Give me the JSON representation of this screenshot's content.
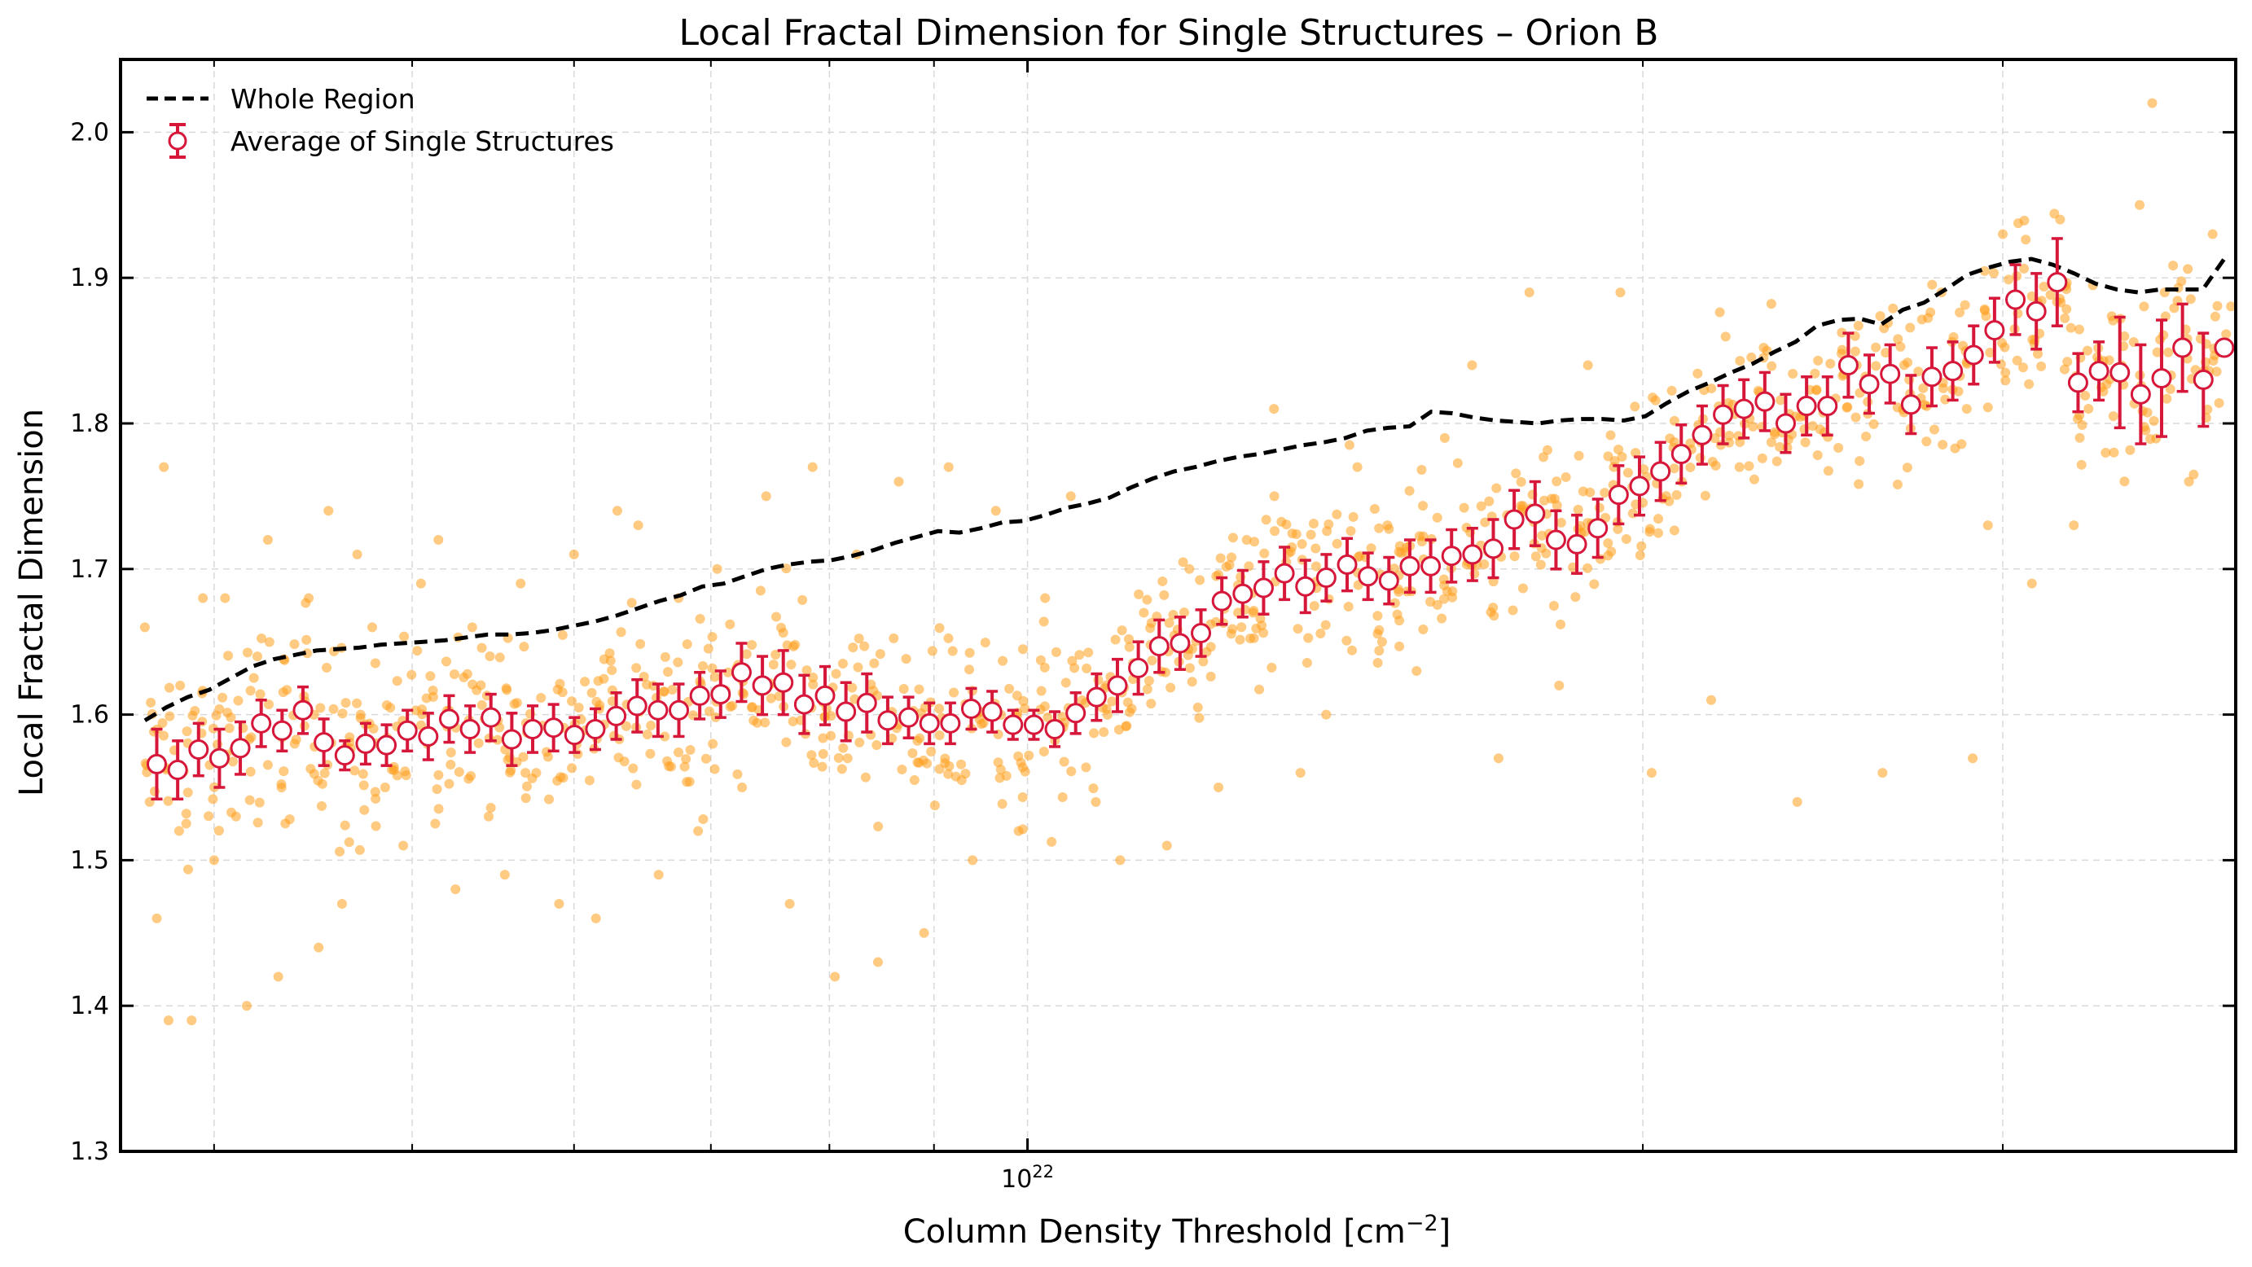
{
  "chart_data": {
    "type": "scatter",
    "title": "Local Fractal Dimension for Single Structures – Orion B",
    "xlabel": "Column Density Threshold [cm",
    "xlabel_sup": "−2",
    "xlabel_close": "]",
    "ylabel": "Local Fractal Dimension",
    "xscale": "log",
    "xlim": [
      3.6e+21,
      3.9e+22
    ],
    "ylim": [
      1.3,
      2.05
    ],
    "x_ticks": [
      {
        "value": 1e+22,
        "base": "10",
        "exp": "22"
      }
    ],
    "y_ticks": [
      "1.3",
      "1.4",
      "1.5",
      "1.6",
      "1.7",
      "1.8",
      "1.9",
      "2.0"
    ],
    "grid": true,
    "legend_position": "top-left",
    "legend": [
      {
        "label": "Whole Region",
        "style": "dashed-line",
        "color": "#000000"
      },
      {
        "label": "Average of Single Structures",
        "style": "errorbar-open-circle",
        "color": "#d6173a"
      }
    ],
    "colors": {
      "scatter": "#ff9f1c",
      "average": "#d6173a",
      "whole_region": "#000000"
    },
    "series": [
      {
        "name": "Whole Region",
        "style": "dashed-line",
        "x_start": 3.7e+21,
        "x_end": 3.85e+22,
        "y": [
          1.596,
          1.605,
          1.612,
          1.617,
          1.625,
          1.633,
          1.638,
          1.641,
          1.644,
          1.645,
          1.646,
          1.648,
          1.649,
          1.65,
          1.651,
          1.653,
          1.655,
          1.655,
          1.656,
          1.658,
          1.661,
          1.664,
          1.668,
          1.673,
          1.678,
          1.682,
          1.688,
          1.69,
          1.695,
          1.7,
          1.703,
          1.705,
          1.706,
          1.709,
          1.713,
          1.718,
          1.722,
          1.726,
          1.725,
          1.728,
          1.732,
          1.733,
          1.737,
          1.742,
          1.745,
          1.749,
          1.756,
          1.762,
          1.767,
          1.77,
          1.774,
          1.777,
          1.779,
          1.782,
          1.785,
          1.787,
          1.79,
          1.795,
          1.797,
          1.798,
          1.808,
          1.807,
          1.804,
          1.802,
          1.801,
          1.8,
          1.802,
          1.803,
          1.803,
          1.802,
          1.805,
          1.814,
          1.822,
          1.828,
          1.835,
          1.841,
          1.849,
          1.856,
          1.867,
          1.871,
          1.872,
          1.868,
          1.878,
          1.883,
          1.892,
          1.902,
          1.907,
          1.911,
          1.913,
          1.909,
          1.903,
          1.896,
          1.892,
          1.89,
          1.892,
          1.892,
          1.892,
          1.913
        ]
      },
      {
        "name": "Average of Single Structures",
        "style": "errorbar-open-circle",
        "x_start": 3.75e+21,
        "x_end": 3.85e+22,
        "y": [
          1.566,
          1.562,
          1.576,
          1.57,
          1.577,
          1.594,
          1.589,
          1.603,
          1.581,
          1.572,
          1.58,
          1.579,
          1.589,
          1.585,
          1.597,
          1.59,
          1.598,
          1.583,
          1.59,
          1.591,
          1.586,
          1.59,
          1.599,
          1.606,
          1.603,
          1.603,
          1.613,
          1.614,
          1.629,
          1.62,
          1.622,
          1.607,
          1.613,
          1.602,
          1.608,
          1.596,
          1.598,
          1.594,
          1.594,
          1.604,
          1.602,
          1.593,
          1.593,
          1.59,
          1.601,
          1.612,
          1.62,
          1.632,
          1.647,
          1.649,
          1.656,
          1.678,
          1.683,
          1.687,
          1.697,
          1.688,
          1.694,
          1.703,
          1.695,
          1.692,
          1.702,
          1.702,
          1.709,
          1.71,
          1.714,
          1.734,
          1.738,
          1.72,
          1.717,
          1.728,
          1.751,
          1.757,
          1.767,
          1.779,
          1.792,
          1.806,
          1.81,
          1.815,
          1.8,
          1.812,
          1.812,
          1.84,
          1.827,
          1.834,
          1.813,
          1.832,
          1.836,
          1.847,
          1.864,
          1.885,
          1.877,
          1.897,
          1.828,
          1.836,
          1.835,
          1.82,
          1.831,
          1.852,
          1.83,
          1.852
        ],
        "yerr": [
          0.024,
          0.02,
          0.018,
          0.02,
          0.018,
          0.016,
          0.014,
          0.016,
          0.016,
          0.01,
          0.014,
          0.014,
          0.014,
          0.016,
          0.016,
          0.016,
          0.016,
          0.018,
          0.016,
          0.016,
          0.012,
          0.014,
          0.016,
          0.018,
          0.018,
          0.018,
          0.016,
          0.016,
          0.02,
          0.02,
          0.022,
          0.02,
          0.02,
          0.02,
          0.02,
          0.016,
          0.014,
          0.014,
          0.014,
          0.014,
          0.014,
          0.01,
          0.01,
          0.012,
          0.014,
          0.016,
          0.018,
          0.018,
          0.018,
          0.018,
          0.016,
          0.016,
          0.016,
          0.018,
          0.018,
          0.018,
          0.016,
          0.018,
          0.016,
          0.016,
          0.018,
          0.018,
          0.018,
          0.018,
          0.02,
          0.02,
          0.022,
          0.02,
          0.02,
          0.02,
          0.02,
          0.02,
          0.02,
          0.02,
          0.02,
          0.02,
          0.02,
          0.02,
          0.02,
          0.02,
          0.02,
          0.022,
          0.02,
          0.02,
          0.02,
          0.02,
          0.02,
          0.02,
          0.022,
          0.024,
          0.026,
          0.03,
          0.02,
          0.02,
          0.038,
          0.034,
          0.04,
          0.03,
          0.032,
          0
        ]
      }
    ],
    "scatter_points": [
      {
        "x": 3.7e+21,
        "y": 1.66
      },
      {
        "x": 3.72e+21,
        "y": 1.54
      },
      {
        "x": 3.75e+21,
        "y": 1.46
      },
      {
        "x": 3.78e+21,
        "y": 1.77
      },
      {
        "x": 3.8e+21,
        "y": 1.39
      },
      {
        "x": 3.85e+21,
        "y": 1.62
      },
      {
        "x": 3.9e+21,
        "y": 1.39
      },
      {
        "x": 3.95e+21,
        "y": 1.68
      },
      {
        "x": 4e+21,
        "y": 1.5
      },
      {
        "x": 4.05e+21,
        "y": 1.68
      },
      {
        "x": 4.1e+21,
        "y": 1.53
      },
      {
        "x": 4.15e+21,
        "y": 1.4
      },
      {
        "x": 4.2e+21,
        "y": 1.64
      },
      {
        "x": 4.25e+21,
        "y": 1.72
      },
      {
        "x": 4.3e+21,
        "y": 1.42
      },
      {
        "x": 4.38e+21,
        "y": 1.58
      },
      {
        "x": 4.45e+21,
        "y": 1.68
      },
      {
        "x": 4.5e+21,
        "y": 1.44
      },
      {
        "x": 4.55e+21,
        "y": 1.74
      },
      {
        "x": 4.62e+21,
        "y": 1.47
      },
      {
        "x": 4.7e+21,
        "y": 1.71
      },
      {
        "x": 4.78e+21,
        "y": 1.66
      },
      {
        "x": 4.85e+21,
        "y": 1.55
      },
      {
        "x": 4.95e+21,
        "y": 1.51
      },
      {
        "x": 5.05e+21,
        "y": 1.69
      },
      {
        "x": 5.15e+21,
        "y": 1.72
      },
      {
        "x": 5.25e+21,
        "y": 1.48
      },
      {
        "x": 5.35e+21,
        "y": 1.66
      },
      {
        "x": 5.45e+21,
        "y": 1.53
      },
      {
        "x": 5.55e+21,
        "y": 1.49
      },
      {
        "x": 5.65e+21,
        "y": 1.69
      },
      {
        "x": 5.75e+21,
        "y": 1.56
      },
      {
        "x": 5.9e+21,
        "y": 1.47
      },
      {
        "x": 6e+21,
        "y": 1.71
      },
      {
        "x": 6.15e+21,
        "y": 1.46
      },
      {
        "x": 6.3e+21,
        "y": 1.74
      },
      {
        "x": 6.45e+21,
        "y": 1.73
      },
      {
        "x": 6.6e+21,
        "y": 1.49
      },
      {
        "x": 6.75e+21,
        "y": 1.68
      },
      {
        "x": 6.9e+21,
        "y": 1.52
      },
      {
        "x": 7.05e+21,
        "y": 1.7
      },
      {
        "x": 7.25e+21,
        "y": 1.55
      },
      {
        "x": 7.45e+21,
        "y": 1.75
      },
      {
        "x": 7.65e+21,
        "y": 1.47
      },
      {
        "x": 7.85e+21,
        "y": 1.77
      },
      {
        "x": 8.05e+21,
        "y": 1.42
      },
      {
        "x": 8.25e+21,
        "y": 1.71
      },
      {
        "x": 8.45e+21,
        "y": 1.43
      },
      {
        "x": 8.65e+21,
        "y": 1.76
      },
      {
        "x": 8.9e+21,
        "y": 1.45
      },
      {
        "x": 9.15e+21,
        "y": 1.77
      },
      {
        "x": 9.4e+21,
        "y": 1.5
      },
      {
        "x": 9.65e+21,
        "y": 1.74
      },
      {
        "x": 9.9e+21,
        "y": 1.52
      },
      {
        "x": 1.02e+22,
        "y": 1.68
      },
      {
        "x": 1.05e+22,
        "y": 1.75
      },
      {
        "x": 1.08e+22,
        "y": 1.54
      },
      {
        "x": 1.11e+22,
        "y": 1.5
      },
      {
        "x": 1.14e+22,
        "y": 1.67
      },
      {
        "x": 1.17e+22,
        "y": 1.51
      },
      {
        "x": 1.2e+22,
        "y": 1.7
      },
      {
        "x": 1.24e+22,
        "y": 1.55
      },
      {
        "x": 1.28e+22,
        "y": 1.72
      },
      {
        "x": 1.32e+22,
        "y": 1.81
      },
      {
        "x": 1.36e+22,
        "y": 1.56
      },
      {
        "x": 1.4e+22,
        "y": 1.6
      },
      {
        "x": 1.45e+22,
        "y": 1.77
      },
      {
        "x": 1.5e+22,
        "y": 1.73
      },
      {
        "x": 1.55e+22,
        "y": 1.63
      },
      {
        "x": 1.6e+22,
        "y": 1.79
      },
      {
        "x": 1.65e+22,
        "y": 1.84
      },
      {
        "x": 1.7e+22,
        "y": 1.57
      },
      {
        "x": 1.76e+22,
        "y": 1.89
      },
      {
        "x": 1.82e+22,
        "y": 1.62
      },
      {
        "x": 1.88e+22,
        "y": 1.84
      },
      {
        "x": 1.95e+22,
        "y": 1.89
      },
      {
        "x": 2.02e+22,
        "y": 1.56
      },
      {
        "x": 2.09e+22,
        "y": 1.76
      },
      {
        "x": 2.16e+22,
        "y": 1.61
      },
      {
        "x": 2.23e+22,
        "y": 1.77
      },
      {
        "x": 2.3e+22,
        "y": 1.85
      },
      {
        "x": 2.38e+22,
        "y": 1.54
      },
      {
        "x": 2.46e+22,
        "y": 1.81
      },
      {
        "x": 2.54e+22,
        "y": 1.86
      },
      {
        "x": 2.62e+22,
        "y": 1.56
      },
      {
        "x": 2.7e+22,
        "y": 1.83
      },
      {
        "x": 2.8e+22,
        "y": 1.89
      },
      {
        "x": 2.9e+22,
        "y": 1.57
      },
      {
        "x": 3e+22,
        "y": 1.93
      },
      {
        "x": 3.1e+22,
        "y": 1.69
      },
      {
        "x": 3.2e+22,
        "y": 1.94
      },
      {
        "x": 3.3e+22,
        "y": 1.85
      },
      {
        "x": 3.4e+22,
        "y": 1.78
      },
      {
        "x": 3.5e+22,
        "y": 1.95
      },
      {
        "x": 3.6e+22,
        "y": 1.89
      },
      {
        "x": 3.7e+22,
        "y": 1.76
      },
      {
        "x": 3.8e+22,
        "y": 1.93
      },
      {
        "x": 3.55e+22,
        "y": 2.02
      },
      {
        "x": 3.25e+22,
        "y": 1.73
      },
      {
        "x": 2.95e+22,
        "y": 1.73
      }
    ],
    "scatter_style": "background cloud of individual structure values"
  }
}
